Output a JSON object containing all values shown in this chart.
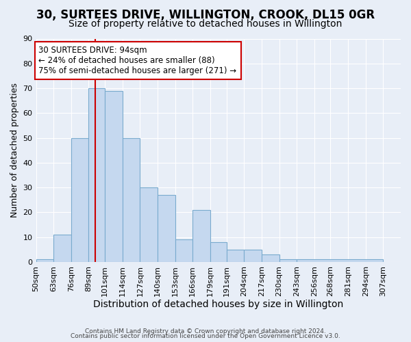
{
  "title": "30, SURTEES DRIVE, WILLINGTON, CROOK, DL15 0GR",
  "subtitle": "Size of property relative to detached houses in Willington",
  "xlabel": "Distribution of detached houses by size in Willington",
  "ylabel": "Number of detached properties",
  "bar_heights": [
    1,
    11,
    50,
    70,
    69,
    50,
    30,
    27,
    9,
    21,
    8,
    5,
    5,
    3,
    1,
    1
  ],
  "bin_edges": [
    50,
    63,
    76,
    89,
    101,
    114,
    127,
    140,
    153,
    166,
    179,
    191,
    204,
    217,
    230,
    243,
    307
  ],
  "x_tick_labels": [
    "50sqm",
    "63sqm",
    "76sqm",
    "89sqm",
    "101sqm",
    "114sqm",
    "127sqm",
    "140sqm",
    "153sqm",
    "166sqm",
    "179sqm",
    "191sqm",
    "204sqm",
    "217sqm",
    "230sqm",
    "243sqm",
    "256sqm",
    "268sqm",
    "281sqm",
    "294sqm",
    "307sqm"
  ],
  "x_tick_positions": [
    50,
    63,
    76,
    89,
    101,
    114,
    127,
    140,
    153,
    166,
    179,
    191,
    204,
    217,
    230,
    243,
    256,
    268,
    281,
    294,
    307
  ],
  "bar_color": "#c5d8ef",
  "bar_edge_color": "#7aabce",
  "property_line_x": 94,
  "property_line_color": "#cc0000",
  "annotation_text": "30 SURTEES DRIVE: 94sqm\n← 24% of detached houses are smaller (88)\n75% of semi-detached houses are larger (271) →",
  "annotation_box_color": "#ffffff",
  "annotation_box_edge": "#cc0000",
  "ylim": [
    0,
    90
  ],
  "yticks": [
    0,
    10,
    20,
    30,
    40,
    50,
    60,
    70,
    80,
    90
  ],
  "xlim": [
    50,
    320
  ],
  "footer1": "Contains HM Land Registry data © Crown copyright and database right 2024.",
  "footer2": "Contains public sector information licensed under the Open Government Licence v3.0.",
  "background_color": "#e8eef7",
  "grid_color": "#ffffff",
  "title_fontsize": 12,
  "subtitle_fontsize": 10,
  "tick_fontsize": 8,
  "ylabel_fontsize": 9,
  "xlabel_fontsize": 10
}
